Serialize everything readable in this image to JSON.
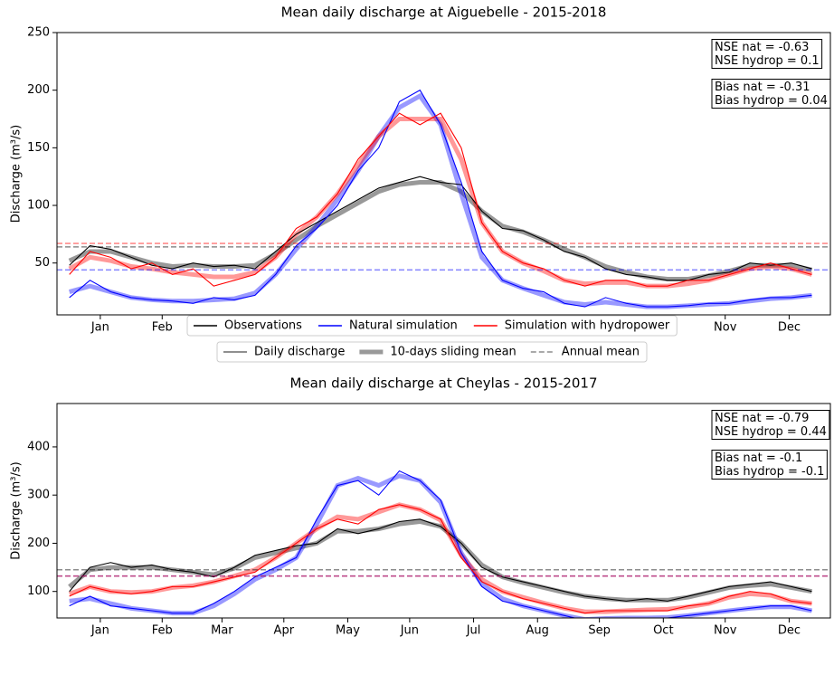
{
  "chart_data": [
    {
      "type": "line",
      "title": "Mean daily discharge at Aiguebelle - 2015-2018",
      "y_label": "Discharge (m³/s)",
      "x": [
        1,
        11,
        21,
        31,
        41,
        51,
        61,
        71,
        81,
        91,
        101,
        111,
        121,
        131,
        141,
        151,
        161,
        171,
        181,
        191,
        201,
        211,
        221,
        231,
        241,
        251,
        261,
        271,
        281,
        291,
        301,
        311,
        321,
        331,
        341,
        351,
        361
      ],
      "xlim": [
        -5,
        370
      ],
      "xticks": [
        {
          "value": 16,
          "label": "Jan"
        },
        {
          "value": 46,
          "label": "Feb"
        },
        {
          "value": 75,
          "label": "Mar"
        },
        {
          "value": 105,
          "label": "Apr"
        },
        {
          "value": 136,
          "label": "May"
        },
        {
          "value": 166,
          "label": "Jun"
        },
        {
          "value": 197,
          "label": "Jul"
        },
        {
          "value": 228,
          "label": "Aug"
        },
        {
          "value": 258,
          "label": "Sep"
        },
        {
          "value": 289,
          "label": "Oct"
        },
        {
          "value": 319,
          "label": "Nov"
        },
        {
          "value": 350,
          "label": "Dec"
        }
      ],
      "ylim": [
        5,
        250
      ],
      "yticks": [
        50,
        100,
        150,
        200,
        250
      ],
      "series": [
        {
          "name": "Observations",
          "color": "#000000",
          "values": [
            48,
            65,
            62,
            55,
            48,
            45,
            50,
            47,
            48,
            45,
            60,
            75,
            85,
            95,
            105,
            115,
            120,
            125,
            120,
            118,
            95,
            80,
            78,
            70,
            60,
            55,
            45,
            40,
            38,
            35,
            35,
            40,
            42,
            50,
            48,
            50,
            45
          ],
          "sliding_mean": [
            52,
            60,
            60,
            55,
            50,
            47,
            48,
            47,
            47,
            48,
            58,
            70,
            82,
            92,
            102,
            112,
            118,
            120,
            120,
            112,
            95,
            82,
            77,
            70,
            62,
            55,
            47,
            42,
            38,
            36,
            36,
            39,
            43,
            48,
            48,
            48,
            44
          ],
          "annual_mean": 64
        },
        {
          "name": "Natural simulation",
          "color": "#0000ff",
          "values": [
            20,
            35,
            25,
            20,
            18,
            17,
            15,
            20,
            18,
            22,
            40,
            65,
            80,
            100,
            130,
            150,
            190,
            200,
            170,
            120,
            60,
            35,
            28,
            25,
            15,
            12,
            20,
            15,
            12,
            12,
            13,
            15,
            15,
            18,
            20,
            20,
            22
          ],
          "sliding_mean": [
            25,
            30,
            25,
            20,
            18,
            17,
            17,
            18,
            19,
            24,
            40,
            62,
            82,
            105,
            130,
            160,
            185,
            195,
            170,
            110,
            55,
            35,
            28,
            22,
            16,
            14,
            16,
            14,
            12,
            12,
            13,
            14,
            15,
            17,
            19,
            20,
            22
          ],
          "annual_mean": 44
        },
        {
          "name": "Simulation with hydropower",
          "color": "#ff0000",
          "values": [
            40,
            60,
            55,
            45,
            50,
            40,
            45,
            30,
            35,
            40,
            55,
            80,
            90,
            110,
            140,
            160,
            180,
            170,
            180,
            150,
            85,
            60,
            50,
            45,
            35,
            30,
            35,
            35,
            30,
            30,
            35,
            35,
            40,
            45,
            50,
            45,
            40
          ],
          "sliding_mean": [
            45,
            55,
            52,
            47,
            45,
            42,
            40,
            38,
            38,
            42,
            55,
            75,
            90,
            110,
            135,
            160,
            175,
            175,
            175,
            140,
            85,
            60,
            50,
            43,
            35,
            32,
            33,
            33,
            30,
            30,
            32,
            35,
            40,
            45,
            47,
            45,
            40
          ],
          "annual_mean": 67
        }
      ],
      "style_legend": [
        "Daily discharge",
        "10-days sliding mean",
        "Annual mean"
      ],
      "annotations": [
        [
          "NSE nat = -0.63",
          "NSE hydrop = 0.1"
        ],
        [
          "Bias nat = -0.31",
          "Bias hydrop = 0.04"
        ]
      ]
    },
    {
      "type": "line",
      "title": "Mean daily discharge at Cheylas - 2015-2017",
      "y_label": "Discharge (m³/s)",
      "x": [
        1,
        11,
        21,
        31,
        41,
        51,
        61,
        71,
        81,
        91,
        101,
        111,
        121,
        131,
        141,
        151,
        161,
        171,
        181,
        191,
        201,
        211,
        221,
        231,
        241,
        251,
        261,
        271,
        281,
        291,
        301,
        311,
        321,
        331,
        341,
        351,
        361
      ],
      "xlim": [
        -5,
        370
      ],
      "xticks": [
        {
          "value": 16,
          "label": "Jan"
        },
        {
          "value": 46,
          "label": "Feb"
        },
        {
          "value": 75,
          "label": "Mar"
        },
        {
          "value": 105,
          "label": "Apr"
        },
        {
          "value": 136,
          "label": "May"
        },
        {
          "value": 166,
          "label": "Jun"
        },
        {
          "value": 197,
          "label": "Jul"
        },
        {
          "value": 228,
          "label": "Aug"
        },
        {
          "value": 258,
          "label": "Sep"
        },
        {
          "value": 289,
          "label": "Oct"
        },
        {
          "value": 319,
          "label": "Nov"
        },
        {
          "value": 350,
          "label": "Dec"
        }
      ],
      "ylim": [
        45,
        490
      ],
      "yticks": [
        100,
        200,
        300,
        400
      ],
      "series": [
        {
          "color": "#000000",
          "values": [
            100,
            150,
            160,
            150,
            155,
            145,
            140,
            130,
            150,
            175,
            185,
            195,
            200,
            230,
            220,
            230,
            245,
            250,
            235,
            200,
            150,
            130,
            120,
            110,
            100,
            90,
            85,
            80,
            85,
            80,
            90,
            100,
            110,
            115,
            120,
            110,
            100
          ],
          "sliding_mean": [
            110,
            145,
            150,
            150,
            150,
            145,
            140,
            135,
            148,
            170,
            180,
            190,
            200,
            225,
            225,
            230,
            240,
            245,
            235,
            200,
            155,
            130,
            118,
            108,
            98,
            90,
            85,
            82,
            82,
            82,
            88,
            98,
            108,
            112,
            115,
            108,
            100
          ],
          "annual_mean": 145
        },
        {
          "color": "#0000ff",
          "values": [
            70,
            90,
            70,
            65,
            60,
            55,
            55,
            75,
            100,
            130,
            150,
            170,
            250,
            320,
            330,
            300,
            350,
            330,
            290,
            180,
            110,
            80,
            70,
            60,
            50,
            40,
            45,
            45,
            45,
            45,
            50,
            55,
            60,
            65,
            70,
            70,
            60
          ],
          "sliding_mean": [
            80,
            85,
            75,
            65,
            60,
            55,
            55,
            70,
            95,
            125,
            145,
            170,
            240,
            320,
            335,
            320,
            340,
            330,
            285,
            180,
            115,
            85,
            70,
            60,
            50,
            42,
            44,
            45,
            45,
            46,
            50,
            55,
            60,
            65,
            68,
            68,
            60
          ],
          "annual_mean": 132
        },
        {
          "color": "#ff0000",
          "values": [
            90,
            110,
            100,
            95,
            100,
            110,
            110,
            120,
            130,
            140,
            170,
            200,
            230,
            250,
            240,
            270,
            280,
            270,
            250,
            170,
            120,
            100,
            85,
            75,
            65,
            55,
            60,
            60,
            60,
            60,
            70,
            75,
            90,
            100,
            95,
            80,
            75
          ],
          "sliding_mean": [
            95,
            110,
            100,
            98,
            100,
            108,
            112,
            120,
            132,
            145,
            170,
            200,
            230,
            255,
            250,
            265,
            280,
            270,
            248,
            175,
            125,
            100,
            88,
            76,
            65,
            58,
            58,
            60,
            62,
            63,
            68,
            75,
            88,
            95,
            92,
            80,
            75
          ],
          "annual_mean": 132
        }
      ],
      "annotations": [
        [
          "NSE nat = -0.79",
          "NSE hydrop = 0.44"
        ],
        [
          "Bias nat = -0.1",
          "Bias hydrop = -0.1"
        ]
      ]
    }
  ]
}
